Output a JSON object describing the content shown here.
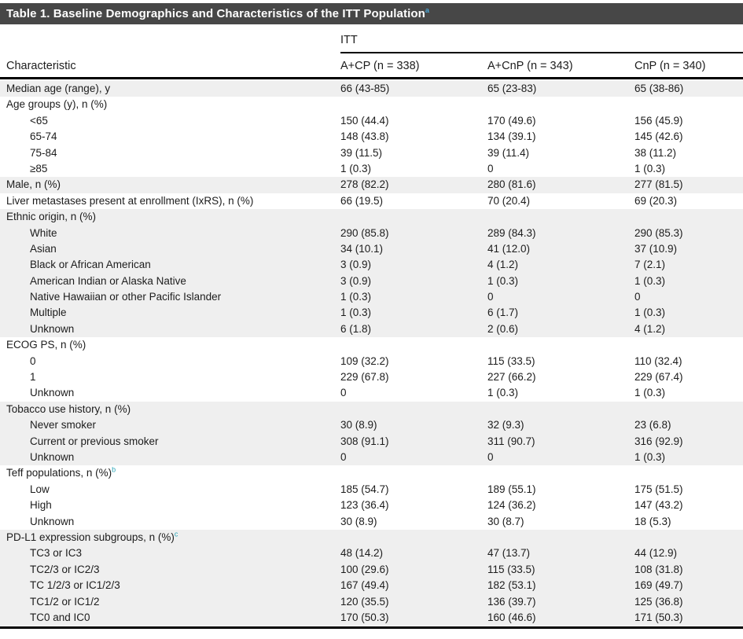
{
  "colors": {
    "title_bar_bg": "#474747",
    "title_text": "#ffffff",
    "shaded_row_bg": "#efefef",
    "footnote_marker": "#2aa5b8",
    "rule": "#000000"
  },
  "table": {
    "title": "Table 1. Baseline Demographics and Characteristics of the ITT Population",
    "title_superscript": "a",
    "span_header": "ITT",
    "columns": {
      "characteristic": "Characteristic",
      "col1": "A+CP (n = 338)",
      "col2": "A+CnP (n = 343)",
      "col3": "CnP (n = 340)"
    },
    "rows": [
      {
        "label": "Median age (range), y",
        "indent": 0,
        "shade": true,
        "values": [
          "66 (43-85)",
          "65 (23-83)",
          "65 (38-86)"
        ]
      },
      {
        "label": "Age groups (y), n (%)",
        "indent": 0,
        "shade": false,
        "values": [
          "",
          "",
          ""
        ]
      },
      {
        "label": "<65",
        "indent": 1,
        "shade": false,
        "values": [
          "150 (44.4)",
          "170 (49.6)",
          "156 (45.9)"
        ]
      },
      {
        "label": "65-74",
        "indent": 1,
        "shade": false,
        "values": [
          "148 (43.8)",
          "134 (39.1)",
          "145 (42.6)"
        ]
      },
      {
        "label": "75-84",
        "indent": 1,
        "shade": false,
        "values": [
          "39 (11.5)",
          "39 (11.4)",
          "38 (11.2)"
        ]
      },
      {
        "label": "≥85",
        "indent": 1,
        "shade": false,
        "values": [
          "1 (0.3)",
          "0",
          "1 (0.3)"
        ]
      },
      {
        "label": "Male, n (%)",
        "indent": 0,
        "shade": true,
        "values": [
          "278 (82.2)",
          "280 (81.6)",
          "277 (81.5)"
        ]
      },
      {
        "label": "Liver metastases present at enrollment (IxRS), n (%)",
        "indent": 0,
        "shade": false,
        "values": [
          "66 (19.5)",
          "70 (20.4)",
          "69 (20.3)"
        ]
      },
      {
        "label": "Ethnic origin, n (%)",
        "indent": 0,
        "shade": true,
        "values": [
          "",
          "",
          ""
        ]
      },
      {
        "label": "White",
        "indent": 1,
        "shade": true,
        "values": [
          "290 (85.8)",
          "289 (84.3)",
          "290 (85.3)"
        ]
      },
      {
        "label": "Asian",
        "indent": 1,
        "shade": true,
        "values": [
          "34 (10.1)",
          "41 (12.0)",
          "37 (10.9)"
        ]
      },
      {
        "label": "Black or African American",
        "indent": 1,
        "shade": true,
        "values": [
          "3 (0.9)",
          "4 (1.2)",
          "7 (2.1)"
        ]
      },
      {
        "label": "American Indian or Alaska Native",
        "indent": 1,
        "shade": true,
        "values": [
          "3 (0.9)",
          "1 (0.3)",
          "1 (0.3)"
        ]
      },
      {
        "label": "Native Hawaiian or other Pacific Islander",
        "indent": 1,
        "shade": true,
        "values": [
          "1 (0.3)",
          "0",
          "0"
        ]
      },
      {
        "label": "Multiple",
        "indent": 1,
        "shade": true,
        "values": [
          "1 (0.3)",
          "6 (1.7)",
          "1 (0.3)"
        ]
      },
      {
        "label": "Unknown",
        "indent": 1,
        "shade": true,
        "values": [
          "6 (1.8)",
          "2 (0.6)",
          "4 (1.2)"
        ]
      },
      {
        "label": "ECOG PS, n (%)",
        "indent": 0,
        "shade": false,
        "values": [
          "",
          "",
          ""
        ]
      },
      {
        "label": "0",
        "indent": 1,
        "shade": false,
        "values": [
          "109 (32.2)",
          "115 (33.5)",
          "110 (32.4)"
        ]
      },
      {
        "label": "1",
        "indent": 1,
        "shade": false,
        "values": [
          "229 (67.8)",
          "227 (66.2)",
          "229 (67.4)"
        ]
      },
      {
        "label": "Unknown",
        "indent": 1,
        "shade": false,
        "values": [
          "0",
          "1 (0.3)",
          "1 (0.3)"
        ]
      },
      {
        "label": "Tobacco use history, n (%)",
        "indent": 0,
        "shade": true,
        "values": [
          "",
          "",
          ""
        ]
      },
      {
        "label": "Never smoker",
        "indent": 1,
        "shade": true,
        "values": [
          "30 (8.9)",
          "32 (9.3)",
          "23 (6.8)"
        ]
      },
      {
        "label": "Current or previous smoker",
        "indent": 1,
        "shade": true,
        "values": [
          "308 (91.1)",
          "311 (90.7)",
          "316 (92.9)"
        ]
      },
      {
        "label": "Unknown",
        "indent": 1,
        "shade": true,
        "values": [
          "0",
          "0",
          "1 (0.3)"
        ]
      },
      {
        "label": "Teff populations, n (%)",
        "sup": "b",
        "indent": 0,
        "shade": false,
        "values": [
          "",
          "",
          ""
        ]
      },
      {
        "label": "Low",
        "indent": 1,
        "shade": false,
        "values": [
          "185 (54.7)",
          "189 (55.1)",
          "175 (51.5)"
        ]
      },
      {
        "label": "High",
        "indent": 1,
        "shade": false,
        "values": [
          "123 (36.4)",
          "124 (36.2)",
          "147 (43.2)"
        ]
      },
      {
        "label": "Unknown",
        "indent": 1,
        "shade": false,
        "values": [
          "30 (8.9)",
          "30 (8.7)",
          "18 (5.3)"
        ]
      },
      {
        "label": "PD-L1 expression subgroups, n (%)",
        "sup": "c",
        "indent": 0,
        "shade": true,
        "values": [
          "",
          "",
          ""
        ]
      },
      {
        "label": "TC3 or IC3",
        "indent": 1,
        "shade": true,
        "values": [
          "48 (14.2)",
          "47 (13.7)",
          "44 (12.9)"
        ]
      },
      {
        "label": "TC2/3 or IC2/3",
        "indent": 1,
        "shade": true,
        "values": [
          "100 (29.6)",
          "115 (33.5)",
          "108 (31.8)"
        ]
      },
      {
        "label": "TC 1/2/3 or IC1/2/3",
        "indent": 1,
        "shade": true,
        "values": [
          "167 (49.4)",
          "182 (53.1)",
          "169 (49.7)"
        ]
      },
      {
        "label": "TC1/2 or IC1/2",
        "indent": 1,
        "shade": true,
        "values": [
          "120 (35.5)",
          "136 (39.7)",
          "125 (36.8)"
        ]
      },
      {
        "label": "TC0 and IC0",
        "indent": 1,
        "shade": true,
        "values": [
          "170 (50.3)",
          "160 (46.6)",
          "171 (50.3)"
        ]
      }
    ]
  }
}
